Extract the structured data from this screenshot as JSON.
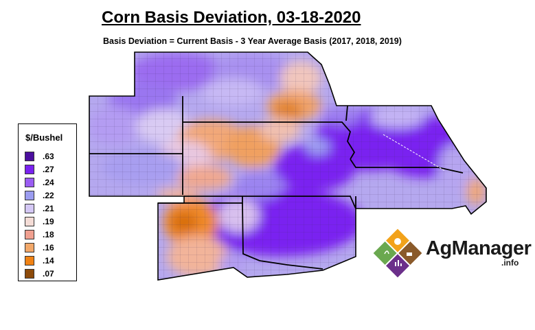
{
  "title": "Corn Basis Deviation, 03-18-2020",
  "subtitle": "Basis Deviation = Current Basis - 3 Year Average Basis (2017, 2018, 2019)",
  "legend": {
    "title": "$/Bushel",
    "items": [
      {
        "label": ".63",
        "color": "#4b0f9e"
      },
      {
        "label": ".27",
        "color": "#7a22f0"
      },
      {
        "label": ".24",
        "color": "#9a5cf2"
      },
      {
        "label": ".22",
        "color": "#9b9cf0"
      },
      {
        "label": ".21",
        "color": "#d4c8f5"
      },
      {
        "label": ".19",
        "color": "#f4dcd6"
      },
      {
        "label": ".18",
        "color": "#f0a090"
      },
      {
        "label": ".16",
        "color": "#f2a86a"
      },
      {
        "label": ".14",
        "color": "#f08214"
      },
      {
        "label": ".07",
        "color": "#8c4a0a"
      }
    ]
  },
  "logo": {
    "name": "AgManager",
    "suffix": ".info"
  }
}
